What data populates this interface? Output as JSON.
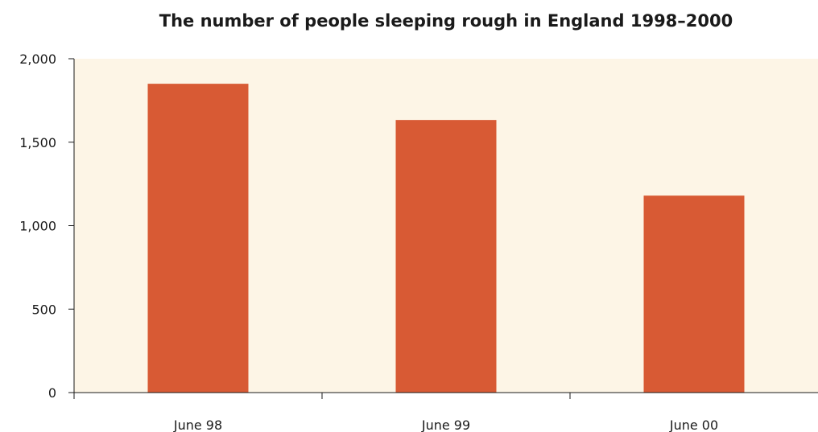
{
  "chart_data": {
    "type": "bar",
    "title": "The number of people sleeping rough in England 1998–2000",
    "xlabel": "",
    "ylabel": "",
    "categories": [
      "June 98",
      "June 99",
      "June 00"
    ],
    "values": [
      1850,
      1633,
      1180
    ],
    "ylim": [
      0,
      2000
    ],
    "yticks": [
      0,
      500,
      1000,
      1500,
      2000
    ],
    "ytick_labels": [
      "0",
      "500",
      "1,000",
      "1,500",
      "2,000"
    ],
    "grid": false,
    "legend": "none",
    "colors": {
      "bar": "#d85a34",
      "plot_background": "#fdf5e6",
      "axis": "#1a1a1a"
    }
  }
}
